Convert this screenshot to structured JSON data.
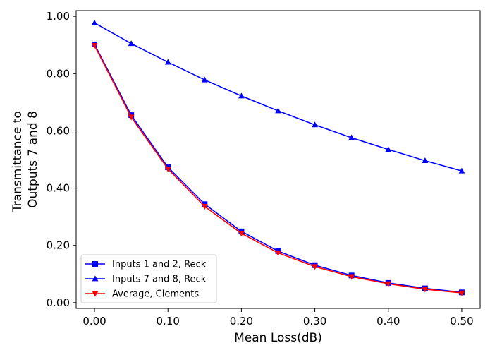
{
  "chart_data": {
    "type": "line",
    "title": "",
    "xlabel": "Mean Loss(dB)",
    "ylabel_lines": [
      "Transmittance to",
      "Outputs 7 and 8"
    ],
    "xlim": [
      -0.025,
      0.525
    ],
    "ylim": [
      -0.02,
      1.02
    ],
    "xticks": [
      0.0,
      0.1,
      0.2,
      0.3,
      0.4,
      0.5
    ],
    "xtick_labels": [
      "0.00",
      "0.10",
      "0.20",
      "0.30",
      "0.40",
      "0.50"
    ],
    "yticks": [
      0.0,
      0.2,
      0.4,
      0.6,
      0.8,
      1.0
    ],
    "ytick_labels": [
      "0.00",
      "0.20",
      "0.40",
      "0.60",
      "0.80",
      "1.00"
    ],
    "grid": false,
    "legend_position": "lower-left",
    "x": [
      0.0,
      0.05,
      0.1,
      0.15,
      0.2,
      0.25,
      0.3,
      0.35,
      0.4,
      0.45,
      0.5
    ],
    "series": [
      {
        "name": "Inputs 1 and 2, Reck",
        "color": "#0000ff",
        "marker": "square",
        "values": [
          0.902,
          0.655,
          0.473,
          0.344,
          0.249,
          0.18,
          0.131,
          0.095,
          0.069,
          0.05,
          0.036
        ]
      },
      {
        "name": "Inputs 7 and 8, Reck",
        "color": "#0000ff",
        "marker": "triangle-up",
        "values": [
          0.977,
          0.905,
          0.84,
          0.778,
          0.722,
          0.67,
          0.621,
          0.576,
          0.535,
          0.496,
          0.46
        ]
      },
      {
        "name": "Average, Clements",
        "color": "#ff0000",
        "marker": "triangle-down",
        "values": [
          0.898,
          0.648,
          0.467,
          0.336,
          0.242,
          0.174,
          0.126,
          0.091,
          0.066,
          0.047,
          0.034
        ]
      }
    ]
  }
}
